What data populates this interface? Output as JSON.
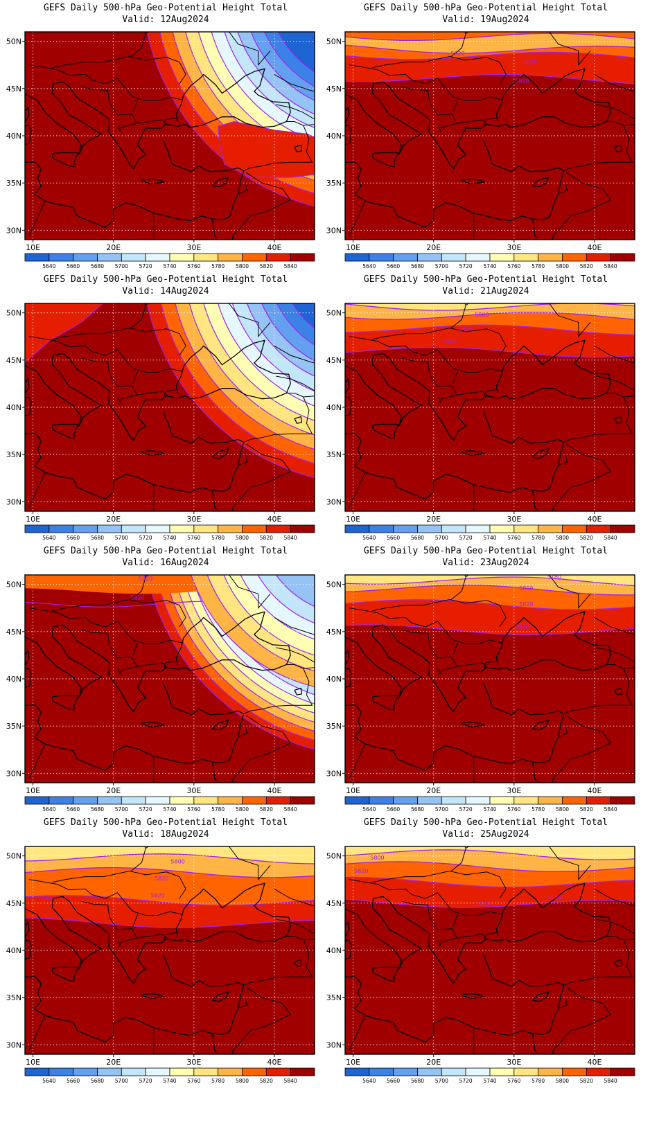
{
  "panels": [
    {
      "title": "GEFS Daily 500-hPa Geo-Potential Height Total",
      "valid": "Valid: 12Aug2024",
      "regime": "trough",
      "trough_strength": 1.0,
      "contour_labels": []
    },
    {
      "title": "GEFS Daily 500-hPa Geo-Potential Height Total",
      "valid": "Valid: 19Aug2024",
      "regime": "zonal",
      "contour_labels": [
        "5800",
        "5820",
        "5820",
        "5820"
      ]
    },
    {
      "title": "GEFS Daily 500-hPa Geo-Potential Height Total",
      "valid": "Valid: 14Aug2024",
      "regime": "trough",
      "trough_strength": 1.1,
      "contour_labels": []
    },
    {
      "title": "GEFS Daily 500-hPa Geo-Potential Height Total",
      "valid": "Valid: 21Aug2024",
      "regime": "zonal",
      "contour_labels": [
        "5800",
        "5820",
        "5820"
      ]
    },
    {
      "title": "GEFS Daily 500-hPa Geo-Potential Height Total",
      "valid": "Valid: 16Aug2024",
      "regime": "trough",
      "trough_strength": 0.7,
      "contour_labels": [
        "5820",
        "5820"
      ]
    },
    {
      "title": "GEFS Daily 500-hPa Geo-Potential Height Total",
      "valid": "Valid: 23Aug2024",
      "regime": "zonal",
      "contour_labels": [
        "5780",
        "5800",
        "5820",
        "5820"
      ]
    },
    {
      "title": "GEFS Daily 500-hPa Geo-Potential Height Total",
      "valid": "Valid: 18Aug2024",
      "regime": "zonal",
      "contour_labels": [
        "5800",
        "5820",
        "5820",
        "5820"
      ]
    },
    {
      "title": "GEFS Daily 500-hPa Geo-Potential Height Total",
      "valid": "Valid: 25Aug2024",
      "regime": "zonal",
      "contour_labels": [
        "5800",
        "5820",
        "5820",
        "5820"
      ]
    }
  ],
  "axes": {
    "lat_labels": [
      "50N",
      "45N",
      "40N",
      "35N",
      "30N"
    ],
    "lon_labels": [
      "10E",
      "20E",
      "30E",
      "40E"
    ]
  },
  "colorbar": {
    "levels": [
      "5640",
      "5660",
      "5680",
      "5700",
      "5720",
      "5740",
      "5760",
      "5780",
      "5800",
      "5820",
      "5840"
    ],
    "colors": [
      "#1e64d2",
      "#3c82e6",
      "#64a0f0",
      "#96c3f5",
      "#c3e6fa",
      "#e6f8ff",
      "#ffffb4",
      "#ffe680",
      "#ffb446",
      "#ff6400",
      "#e61e00",
      "#a00000"
    ]
  },
  "colors": {
    "contour": "#a020f0",
    "coast": "#000000",
    "grid": "#ffffff"
  }
}
